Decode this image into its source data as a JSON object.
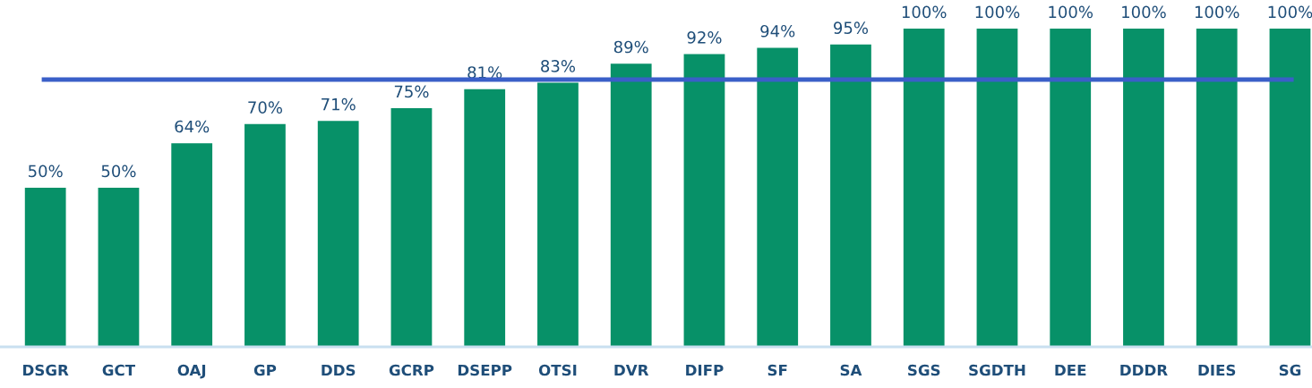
{
  "chart_data": {
    "type": "bar",
    "categories": [
      "DSGR",
      "GCT",
      "OAJ",
      "GP",
      "DDS",
      "GCRP",
      "DSEPP",
      "OTSI",
      "DVR",
      "DIFP",
      "SF",
      "SA",
      "SGS",
      "SGDTH",
      "DEE",
      "DDDR",
      "DIES",
      "SG"
    ],
    "values": [
      50,
      50,
      64,
      70,
      71,
      75,
      81,
      83,
      89,
      92,
      94,
      95,
      100,
      100,
      100,
      100,
      100,
      100
    ],
    "value_labels": [
      "50%",
      "50%",
      "64%",
      "70%",
      "71%",
      "75%",
      "81%",
      "83%",
      "89%",
      "92%",
      "94%",
      "95%",
      "100%",
      "100%",
      "100%",
      "100%",
      "100%",
      "100%"
    ],
    "color": "#079168",
    "tick_labels": "x",
    "grid": false,
    "legend": false,
    "ref_lines": [
      {
        "axis": "y",
        "value": 84,
        "color": "#3a5fc8"
      }
    ]
  }
}
